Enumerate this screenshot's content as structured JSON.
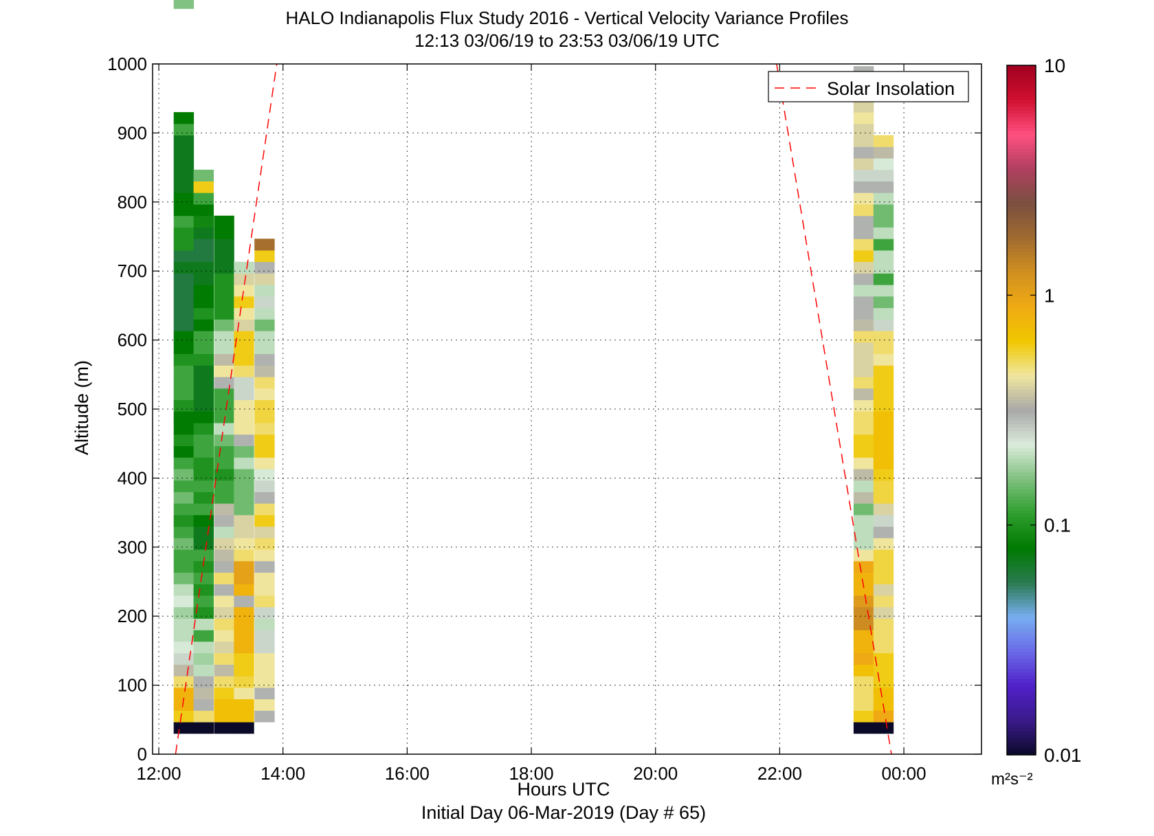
{
  "chart_data": {
    "type": "heatmap",
    "title": "HALO Indianapolis Flux Study 2016 - Vertical Velocity Variance Profiles",
    "subtitle": "12:13 03/06/19 to 23:53 03/06/19  UTC",
    "xlabel": "Hours UTC",
    "ylabel": "Altitude (m)",
    "footer": "Initial Day 06-Mar-2019 (Day # 65)",
    "xlim": [
      11.9,
      25.25
    ],
    "ylim": [
      0,
      1000
    ],
    "x_ticks": [
      {
        "value": 12,
        "label": "12:00"
      },
      {
        "value": 14,
        "label": "14:00"
      },
      {
        "value": 16,
        "label": "16:00"
      },
      {
        "value": 18,
        "label": "18:00"
      },
      {
        "value": 20,
        "label": "20:00"
      },
      {
        "value": 22,
        "label": "22:00"
      },
      {
        "value": 24,
        "label": "00:00"
      }
    ],
    "y_ticks": [
      0,
      100,
      200,
      300,
      400,
      500,
      600,
      700,
      800,
      900,
      1000
    ],
    "grid": true,
    "colorbar": {
      "scale": "log",
      "range": [
        0.01,
        10
      ],
      "ticks": [
        {
          "value": 0.01,
          "label": "0.01"
        },
        {
          "value": 0.1,
          "label": "0.1"
        },
        {
          "value": 1,
          "label": "1"
        },
        {
          "value": 10,
          "label": "10"
        }
      ],
      "units_label": "m²s⁻²",
      "color_stops": [
        "#0a0a28",
        "#3a1a8a",
        "#5020c8",
        "#6a6ae8",
        "#78aef0",
        "#2a7a50",
        "#007a00",
        "#2e9e2e",
        "#7ec07e",
        "#dcebdc",
        "#a8a8a8",
        "#f0e6a0",
        "#f0c800",
        "#f0aa14",
        "#d09020",
        "#a06a30",
        "#7a5040",
        "#b04060",
        "#ff5080",
        "#d01030",
        "#a00020"
      ]
    },
    "legend": {
      "entries": [
        "Solar Insolation"
      ],
      "position": "top-right"
    },
    "solar_insolation": {
      "segments": [
        {
          "x": [
            12.27,
            13.9
          ],
          "y": [
            0,
            1000
          ]
        },
        {
          "x": [
            21.95,
            23.8
          ],
          "y": [
            1000,
            0
          ]
        }
      ],
      "color": "#ff0000",
      "style": "dashed"
    },
    "series": [
      {
        "time": 12.4,
        "alt_start": 30,
        "alt_step": 16.67,
        "values": [
          0.01,
          0.6,
          0.8,
          0.8,
          0.5,
          0.35,
          0.25,
          0.22,
          0.2,
          0.2,
          0.18,
          0.22,
          0.2,
          0.15,
          0.12,
          0.12,
          0.15,
          0.12,
          0.1,
          0.12,
          0.15,
          0.12,
          0.15,
          0.12,
          0.08,
          0.1,
          0.08,
          0.08,
          0.1,
          0.12,
          0.12,
          0.12,
          0.1,
          0.08,
          0.08,
          0.06,
          0.06,
          0.06,
          0.06,
          0.06,
          0.07,
          0.06,
          0.1,
          0.1,
          0.12,
          0.08,
          0.08,
          0.07,
          0.07,
          0.07,
          0.07,
          0.07,
          0.12,
          0.08,
          null,
          null,
          null,
          null,
          null,
          null,
          null,
          null,
          null,
          0.16
        ]
      },
      {
        "time": 12.72,
        "alt_start": 30,
        "alt_step": 16.67,
        "values": [
          0.01,
          0.5,
          0.3,
          0.35,
          0.3,
          0.2,
          0.18,
          0.2,
          0.12,
          0.2,
          0.1,
          0.12,
          0.1,
          0.12,
          0.1,
          0.12,
          0.07,
          0.07,
          0.08,
          0.12,
          0.1,
          0.12,
          0.1,
          0.1,
          0.12,
          0.12,
          0.1,
          0.08,
          0.07,
          0.07,
          0.07,
          0.07,
          0.1,
          0.12,
          0.12,
          0.08,
          0.1,
          0.08,
          0.08,
          0.07,
          0.07,
          0.06,
          0.06,
          0.07,
          0.09,
          0.08,
          0.12,
          0.6,
          0.15
        ]
      },
      {
        "time": 13.05,
        "alt_start": 30,
        "alt_step": 16.67,
        "values": [
          0.01,
          0.7,
          0.7,
          0.6,
          0.5,
          0.35,
          0.5,
          0.4,
          0.45,
          0.5,
          0.4,
          0.45,
          0.3,
          0.5,
          0.3,
          0.35,
          0.4,
          0.2,
          0.3,
          0.35,
          0.12,
          0.12,
          0.1,
          0.12,
          0.12,
          0.15,
          0.2,
          0.12,
          0.12,
          0.12,
          0.3,
          0.45,
          0.35,
          0.2,
          0.2,
          0.15,
          0.1,
          0.1,
          0.1,
          0.1,
          0.07,
          0.07,
          0.07,
          0.08,
          0.08
        ]
      },
      {
        "time": 13.37,
        "alt_start": 30,
        "alt_step": 16.67,
        "values": [
          0.01,
          0.7,
          0.7,
          0.45,
          0.55,
          0.6,
          0.6,
          0.8,
          0.8,
          0.8,
          0.8,
          0.3,
          0.8,
          1.0,
          1.0,
          0.5,
          0.45,
          0.4,
          0.4,
          0.15,
          0.15,
          0.15,
          0.15,
          0.2,
          0.15,
          0.3,
          0.45,
          0.45,
          0.45,
          0.25,
          0.25,
          0.5,
          0.6,
          0.6,
          0.6,
          0.4,
          0.45,
          0.6,
          0.45,
          0.4,
          0.2
        ]
      },
      {
        "time": 13.7,
        "alt_start": 30,
        "alt_step": 16.67,
        "values": [
          null,
          0.3,
          0.45,
          0.3,
          0.45,
          0.45,
          0.45,
          0.25,
          0.25,
          0.2,
          0.25,
          0.5,
          0.45,
          0.45,
          0.3,
          0.45,
          0.5,
          0.4,
          0.6,
          0.5,
          0.3,
          0.25,
          0.22,
          0.45,
          0.6,
          0.6,
          0.5,
          0.55,
          0.55,
          0.45,
          0.5,
          0.35,
          0.3,
          0.2,
          0.2,
          0.15,
          0.2,
          0.25,
          0.2,
          0.4,
          0.3,
          0.6,
          1.7
        ]
      },
      {
        "time": 23.35,
        "alt_start": 30,
        "alt_step": 16.67,
        "values": [
          0.01,
          0.6,
          0.5,
          0.5,
          0.5,
          0.7,
          0.9,
          0.8,
          0.8,
          1.3,
          1.3,
          1.1,
          0.8,
          0.8,
          0.9,
          0.45,
          0.2,
          0.2,
          0.2,
          0.15,
          0.35,
          0.2,
          0.35,
          0.45,
          0.6,
          0.6,
          0.5,
          0.5,
          0.45,
          0.35,
          0.5,
          0.4,
          0.4,
          0.4,
          0.5,
          0.35,
          0.3,
          0.3,
          0.2,
          0.3,
          0.4,
          0.6,
          0.5,
          0.3,
          0.3,
          0.5,
          0.45,
          0.3,
          0.25,
          0.4,
          0.3,
          0.4,
          0.4,
          0.45,
          0.4,
          0.2,
          0.4,
          0.3
        ]
      },
      {
        "time": 23.67,
        "alt_start": 30,
        "alt_step": 16.67,
        "values": [
          0.01,
          0.9,
          0.7,
          0.7,
          0.6,
          0.6,
          0.6,
          0.5,
          0.5,
          0.5,
          0.4,
          0.5,
          0.4,
          0.55,
          0.55,
          0.55,
          0.45,
          0.3,
          0.25,
          0.4,
          0.55,
          0.55,
          0.6,
          0.7,
          0.7,
          0.7,
          0.7,
          0.7,
          0.6,
          0.6,
          0.6,
          0.6,
          0.45,
          0.5,
          0.5,
          0.25,
          0.2,
          0.15,
          0.2,
          0.12,
          0.2,
          0.2,
          0.12,
          0.2,
          0.15,
          0.15,
          0.2,
          0.3,
          0.25,
          0.22,
          0.35,
          0.5
        ]
      }
    ]
  }
}
